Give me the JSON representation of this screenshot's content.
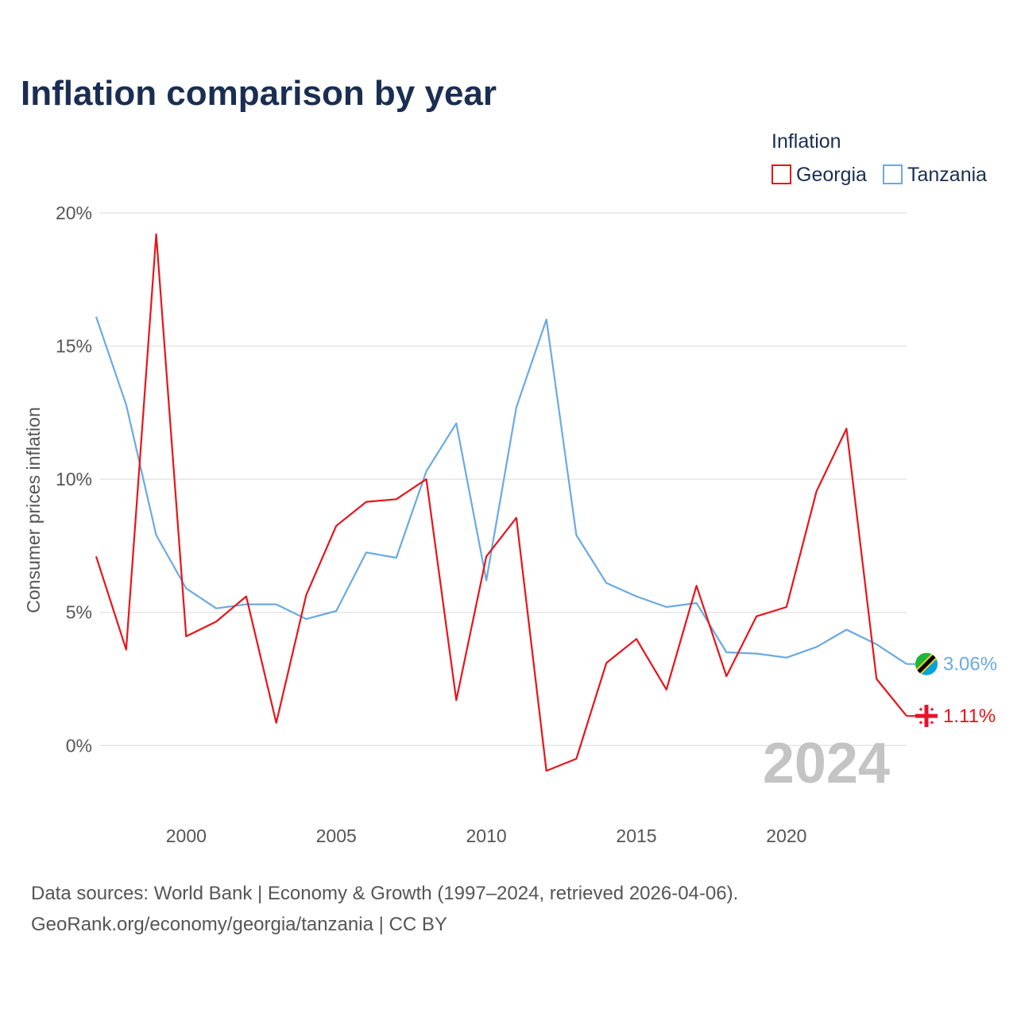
{
  "chart_data": {
    "type": "line",
    "title": "Inflation comparison by year",
    "ylabel": "Consumer prices inflation",
    "xlabel": "",
    "x": [
      1997,
      1998,
      1999,
      2000,
      2001,
      2002,
      2003,
      2004,
      2005,
      2006,
      2007,
      2008,
      2009,
      2010,
      2011,
      2012,
      2013,
      2014,
      2015,
      2016,
      2017,
      2018,
      2019,
      2020,
      2021,
      2022,
      2023,
      2024
    ],
    "xlim": [
      1997,
      2024
    ],
    "ylim": [
      -2.2,
      20
    ],
    "x_ticks": [
      2000,
      2005,
      2010,
      2015,
      2020
    ],
    "y_ticks": [
      0,
      5,
      10,
      15,
      20
    ],
    "x_tick_labels": [
      "2000",
      "2005",
      "2010",
      "2015",
      "2020"
    ],
    "y_tick_labels": [
      "0%",
      "5%",
      "10%",
      "15%",
      "20%"
    ],
    "grid": true,
    "legend": {
      "title": "Inflation",
      "position": "top-right",
      "entries": [
        "Georgia",
        "Tanzania"
      ]
    },
    "series": [
      {
        "name": "Georgia",
        "color": "#e8141a",
        "values": [
          7.1,
          3.6,
          19.2,
          4.1,
          4.65,
          5.6,
          0.85,
          5.65,
          8.25,
          9.15,
          9.25,
          10.0,
          1.7,
          7.1,
          8.55,
          -0.95,
          -0.5,
          3.1,
          4.0,
          2.1,
          6.0,
          2.6,
          4.85,
          5.2,
          9.55,
          11.9,
          2.5,
          1.11
        ],
        "end_label": "1.11%",
        "flag_icon": "georgia-flag-icon"
      },
      {
        "name": "Tanzania",
        "color": "#6aaae2",
        "values": [
          16.1,
          12.8,
          7.9,
          5.9,
          5.15,
          5.3,
          5.3,
          4.75,
          5.05,
          7.25,
          7.05,
          10.3,
          12.1,
          6.2,
          12.7,
          16.0,
          7.9,
          6.1,
          5.6,
          5.2,
          5.35,
          3.5,
          3.45,
          3.3,
          3.7,
          4.35,
          3.8,
          3.06
        ],
        "end_label": "3.06%",
        "flag_icon": "tanzania-flag-icon"
      }
    ],
    "annotation_year": "2024"
  },
  "source": {
    "line1": "Data sources: World Bank | Economy & Growth (1997–2024, retrieved 2026-04-06).",
    "line2": "GeoRank.org/economy/georgia/tanzania | CC BY"
  }
}
